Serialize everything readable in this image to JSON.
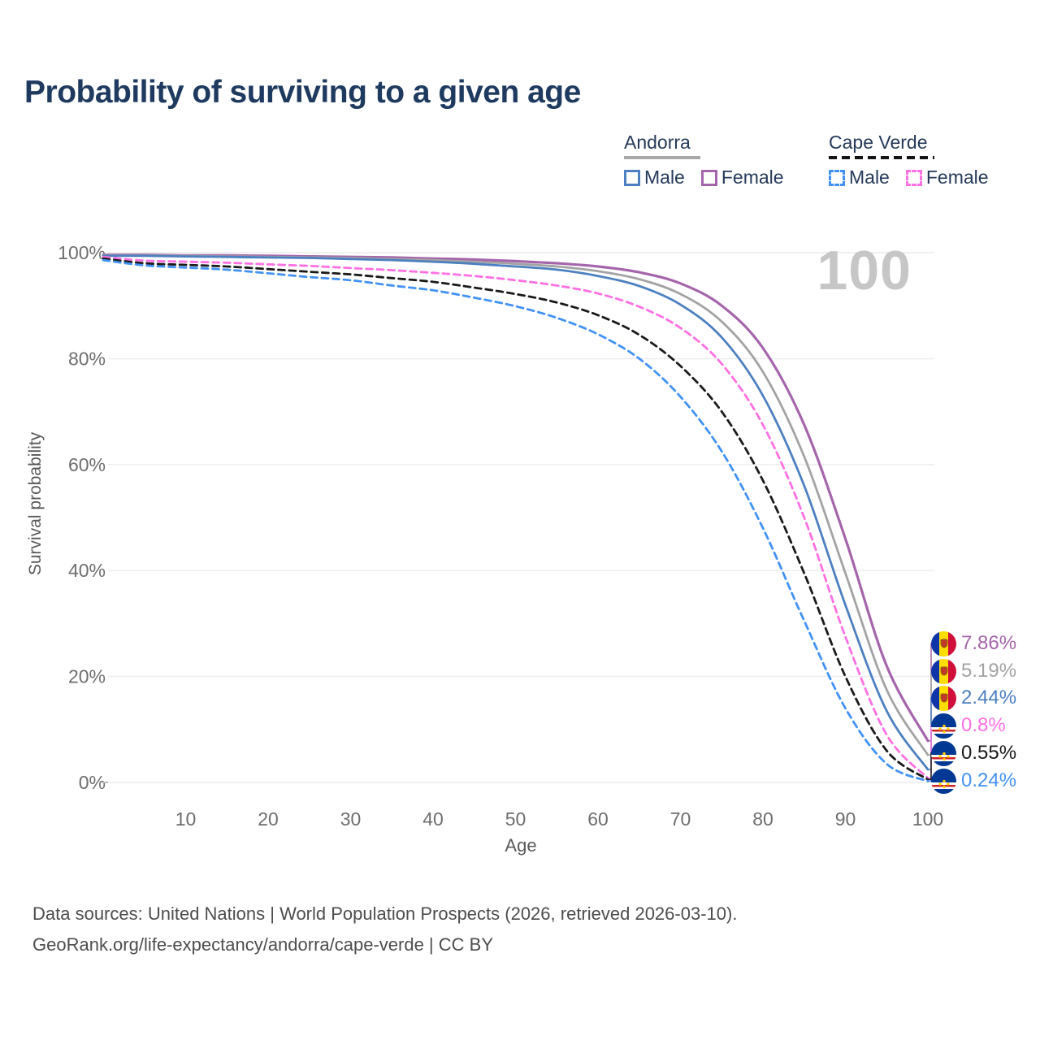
{
  "title": "Probability of surviving to a given age",
  "watermark_age": "100",
  "legend": {
    "groups": [
      {
        "label": "Andorra",
        "line_style": "solid",
        "line_color": "#a8a8a8",
        "items": [
          {
            "label": "Male",
            "color": "#4c80c0",
            "style": "solid"
          },
          {
            "label": "Female",
            "color": "#a565ab",
            "style": "solid"
          }
        ]
      },
      {
        "label": "Cape Verde",
        "line_style": "dashed",
        "line_color": "#141414",
        "items": [
          {
            "label": "Male",
            "color": "#4292f5",
            "style": "dashed"
          },
          {
            "label": "Female",
            "color": "#ff70e3",
            "style": "dashed"
          }
        ]
      }
    ]
  },
  "chart_data": {
    "type": "line",
    "title": "Probability of surviving to a given age",
    "xlabel": "Age",
    "ylabel": "Survival probability",
    "xlim": [
      0,
      100
    ],
    "ylim": [
      0,
      100
    ],
    "grid": "horizontal",
    "legend_position": "top-right",
    "x_ticks": [
      "10",
      "20",
      "30",
      "40",
      "50",
      "60",
      "70",
      "80",
      "90",
      "100"
    ],
    "x_tick_values": [
      10,
      20,
      30,
      40,
      50,
      60,
      70,
      80,
      90,
      100
    ],
    "y_ticks": [
      "0%",
      "20%",
      "40%",
      "60%",
      "80%",
      "100%"
    ],
    "y_tick_values": [
      0,
      20,
      40,
      60,
      80,
      100
    ],
    "x": [
      0,
      5,
      10,
      15,
      20,
      25,
      30,
      35,
      40,
      45,
      50,
      55,
      60,
      65,
      70,
      75,
      80,
      85,
      90,
      95,
      100
    ],
    "series": [
      {
        "name": "Andorra — Female",
        "country": "Andorra",
        "sex": "female",
        "style": "solid",
        "color": "#a565ab",
        "end_label": "7.86%",
        "end_value": 7.86,
        "values": [
          99.6,
          99.6,
          99.5,
          99.5,
          99.4,
          99.3,
          99.2,
          99.1,
          98.9,
          98.7,
          98.4,
          98.0,
          97.4,
          96.3,
          94.2,
          90.0,
          82.0,
          67.5,
          46.0,
          22.0,
          7.86
        ]
      },
      {
        "name": "Andorra — Both sexes",
        "country": "Andorra",
        "sex": "both",
        "style": "solid",
        "color": "#a3a3a3",
        "end_label": "5.19%",
        "end_value": 5.19,
        "values": [
          99.5,
          99.5,
          99.4,
          99.3,
          99.2,
          99.1,
          99.0,
          98.8,
          98.6,
          98.3,
          97.9,
          97.4,
          96.5,
          95.0,
          92.2,
          87.0,
          77.5,
          61.5,
          39.5,
          17.5,
          5.19
        ]
      },
      {
        "name": "Andorra — Male",
        "country": "Andorra",
        "sex": "male",
        "style": "solid",
        "color": "#4c80c0",
        "end_label": "2.44%",
        "end_value": 2.44,
        "values": [
          99.4,
          99.4,
          99.3,
          99.2,
          99.1,
          99.0,
          98.8,
          98.6,
          98.3,
          97.9,
          97.4,
          96.8,
          95.6,
          93.7,
          90.2,
          84.0,
          73.0,
          56.0,
          33.5,
          13.5,
          2.44
        ]
      },
      {
        "name": "Cape Verde — Female",
        "country": "Cape Verde",
        "sex": "female",
        "style": "dashed",
        "color": "#ff70e3",
        "end_label": "0.8%",
        "end_value": 0.8,
        "values": [
          99.2,
          98.5,
          98.3,
          98.1,
          97.8,
          97.5,
          97.1,
          96.7,
          96.2,
          95.6,
          94.8,
          93.8,
          92.3,
          89.8,
          85.8,
          79.0,
          67.5,
          50.0,
          27.5,
          9.0,
          0.8
        ]
      },
      {
        "name": "Cape Verde — Both sexes",
        "country": "Cape Verde",
        "sex": "both",
        "style": "dashed",
        "color": "#1a1a1a",
        "end_label": "0.55%",
        "end_value": 0.55,
        "values": [
          98.9,
          98.0,
          97.7,
          97.4,
          96.9,
          96.4,
          95.9,
          95.2,
          94.5,
          93.4,
          92.2,
          90.6,
          88.2,
          84.5,
          78.6,
          70.0,
          57.0,
          39.5,
          20.0,
          6.0,
          0.55
        ]
      },
      {
        "name": "Cape Verde — Male",
        "country": "Cape Verde",
        "sex": "male",
        "style": "dashed",
        "color": "#4292f5",
        "end_label": "0.24%",
        "end_value": 0.24,
        "values": [
          98.6,
          97.6,
          97.2,
          96.8,
          96.1,
          95.4,
          94.8,
          93.8,
          92.9,
          91.5,
          89.9,
          87.7,
          84.6,
          80.0,
          72.8,
          62.5,
          48.0,
          30.5,
          14.0,
          3.5,
          0.24
        ]
      }
    ]
  },
  "footer": {
    "line1": "Data sources: United Nations | World Population Prospects (2026, retrieved 2026-03-10).",
    "line2": "GeoRank.org/life-expectancy/andorra/cape-verde | CC BY"
  }
}
